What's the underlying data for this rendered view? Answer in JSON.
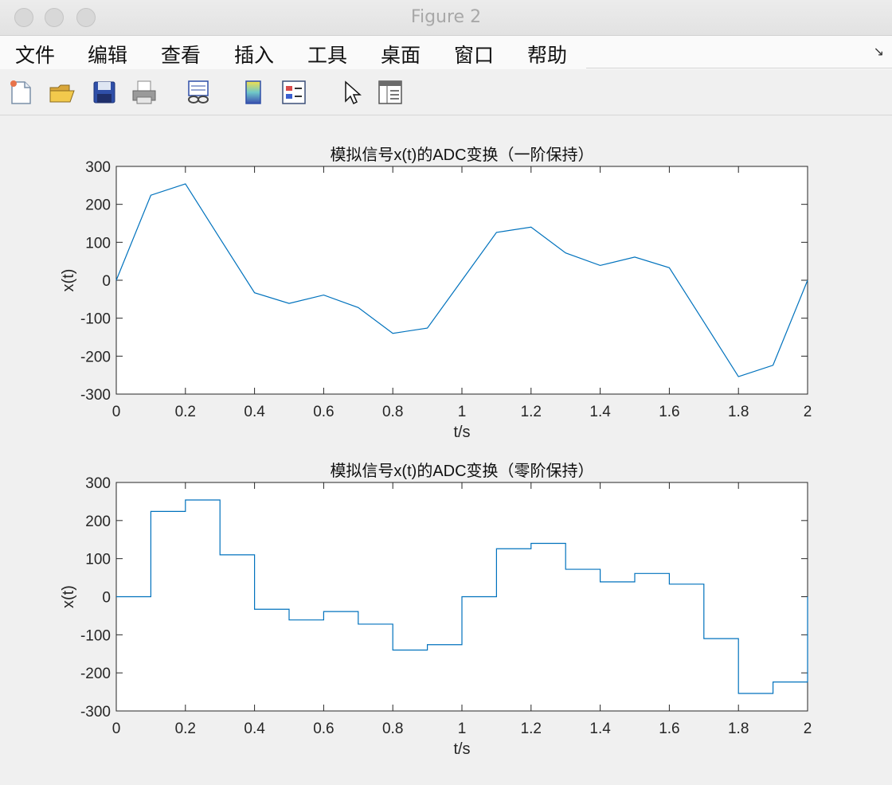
{
  "window": {
    "title": "Figure 2"
  },
  "menu": [
    "文件",
    "编辑",
    "查看",
    "插入",
    "工具",
    "桌面",
    "窗口",
    "帮助"
  ],
  "menu_corner_glyph": "↘",
  "toolbar": [
    "new-file-icon",
    "open-folder-icon",
    "save-icon",
    "print-icon",
    "link-plot-icon",
    "colorbar-icon",
    "legend-icon",
    "select-pointer-icon",
    "property-inspector-icon"
  ],
  "colors": {
    "line": "#0072bd",
    "axes_bg": "#ffffff",
    "figure_bg": "#f0f0f0"
  },
  "chart_data": [
    {
      "type": "line",
      "title": "模拟信号x(t)的ADC变换（一阶保持）",
      "xlabel": "t/s",
      "ylabel": "x(t)",
      "xlim": [
        0,
        2
      ],
      "ylim": [
        -300,
        300
      ],
      "xticks": [
        "0",
        "0.2",
        "0.4",
        "0.6",
        "0.8",
        "1",
        "1.2",
        "1.4",
        "1.6",
        "1.8",
        "2"
      ],
      "yticks": [
        "300",
        "200",
        "100",
        "0",
        "-100",
        "-200",
        "-300"
      ],
      "grid": false,
      "series": [
        {
          "x": [
            0,
            0.1,
            0.2,
            0.3,
            0.4,
            0.5,
            0.6,
            0.7,
            0.8,
            0.9,
            1.0,
            1.1,
            1.2,
            1.3,
            1.4,
            1.5,
            1.6,
            1.7,
            1.8,
            1.9,
            2.0
          ],
          "y": [
            0,
            224,
            254,
            110,
            -33,
            -61,
            -39,
            -72,
            -140,
            -126,
            0,
            126,
            140,
            72,
            39,
            61,
            33,
            -110,
            -254,
            -224,
            0
          ]
        }
      ]
    },
    {
      "type": "line",
      "step": true,
      "title": "模拟信号x(t)的ADC变换（零阶保持）",
      "xlabel": "t/s",
      "ylabel": "x(t)",
      "xlim": [
        0,
        2
      ],
      "ylim": [
        -300,
        300
      ],
      "xticks": [
        "0",
        "0.2",
        "0.4",
        "0.6",
        "0.8",
        "1",
        "1.2",
        "1.4",
        "1.6",
        "1.8",
        "2"
      ],
      "yticks": [
        "300",
        "200",
        "100",
        "0",
        "-100",
        "-200",
        "-300"
      ],
      "grid": false,
      "series": [
        {
          "x": [
            0,
            0.1,
            0.2,
            0.3,
            0.4,
            0.5,
            0.6,
            0.7,
            0.8,
            0.9,
            1.0,
            1.1,
            1.2,
            1.3,
            1.4,
            1.5,
            1.6,
            1.7,
            1.8,
            1.9,
            2.0
          ],
          "y": [
            0,
            224,
            254,
            110,
            -33,
            -61,
            -39,
            -72,
            -140,
            -126,
            0,
            126,
            140,
            72,
            39,
            61,
            33,
            -110,
            -254,
            -224,
            0
          ]
        }
      ]
    }
  ]
}
